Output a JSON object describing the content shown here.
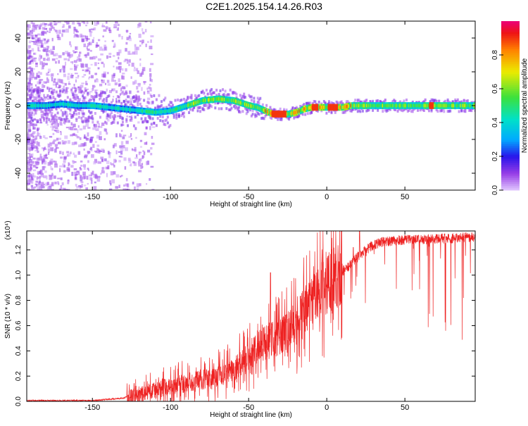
{
  "title": "C2E1.2025.154.14.26.R03",
  "chart_data": [
    {
      "type": "heatmap",
      "xlabel": "Height of straight line (km)",
      "ylabel": "Frequency (Hz)",
      "xlim": [
        -192,
        95
      ],
      "ylim": [
        -50,
        50
      ],
      "x_ticks": [
        "-150",
        "-100",
        "-50",
        "0",
        "50"
      ],
      "x_tick_values": [
        -150,
        -100,
        -50,
        0,
        50
      ],
      "y_ticks": [
        "-40",
        "-20",
        "0",
        "20",
        "40"
      ],
      "y_tick_values": [
        -40,
        -20,
        0,
        20,
        40
      ],
      "colorbar": {
        "label": "Normalized spectral amplitude",
        "range": [
          0,
          1
        ],
        "ticks": [
          "0.0",
          "0.2",
          "0.4",
          "0.6",
          "0.8"
        ],
        "tick_values": [
          0,
          0.2,
          0.4,
          0.6,
          0.8
        ],
        "colormap": "rainbow"
      },
      "ridge": {
        "x": [
          -192,
          -180,
          -170,
          -160,
          -150,
          -140,
          -130,
          -120,
          -110,
          -100,
          -90,
          -80,
          -70,
          -60,
          -50,
          -45,
          -40,
          -35,
          -30,
          -25,
          -20,
          -15,
          -10,
          -5,
          0,
          5,
          10,
          15,
          20,
          30,
          40,
          50,
          60,
          70,
          80,
          90,
          95
        ],
        "y": [
          0,
          0,
          1,
          0,
          0,
          -1,
          -2,
          -3,
          -4,
          -3,
          0,
          3,
          4,
          3,
          0,
          -1,
          -3,
          -5,
          -5,
          -5,
          -4,
          -2,
          -1,
          -1,
          -1,
          -1,
          -1,
          0,
          0,
          0,
          0,
          0,
          0,
          0,
          0,
          0,
          0
        ]
      }
    },
    {
      "type": "line",
      "xlabel": "Height of straight line (km)",
      "ylabel": "SNR (10 * v/v)",
      "y_multiplier_label": "(x10⁴)",
      "xlim": [
        -192,
        95
      ],
      "ylim": [
        0,
        1.35
      ],
      "x_ticks": [
        "-150",
        "-100",
        "-50",
        "0",
        "50"
      ],
      "x_tick_values": [
        -150,
        -100,
        -50,
        0,
        50
      ],
      "y_ticks": [
        "0.0",
        "0.2",
        "0.4",
        "0.6",
        "0.8",
        "1.0",
        "1.2"
      ],
      "y_tick_values": [
        0,
        0.2,
        0.4,
        0.6,
        0.8,
        1.0,
        1.2
      ],
      "series": [
        {
          "color": "#ee2222",
          "x": [
            -192,
            -170,
            -150,
            -140,
            -130,
            -125,
            -120,
            -110,
            -100,
            -90,
            -80,
            -70,
            -60,
            -55,
            -50,
            -45,
            -40,
            -35,
            -30,
            -25,
            -20,
            -15,
            -10,
            -5,
            0,
            5,
            10,
            15,
            20,
            25,
            30,
            35,
            40,
            50,
            60,
            70,
            80,
            90,
            95
          ],
          "y": [
            0.0,
            0.0,
            0.0,
            0.01,
            0.02,
            0.04,
            0.06,
            0.09,
            0.12,
            0.15,
            0.17,
            0.2,
            0.25,
            0.3,
            0.36,
            0.42,
            0.45,
            0.48,
            0.5,
            0.55,
            0.62,
            0.7,
            0.78,
            0.85,
            0.92,
            0.98,
            1.03,
            1.08,
            1.15,
            1.2,
            1.24,
            1.26,
            1.27,
            1.28,
            1.28,
            1.29,
            1.29,
            1.3,
            1.3
          ],
          "peaks": [
            {
              "x": -36,
              "y": 1.02
            },
            {
              "x": 17,
              "y": 1.22
            },
            {
              "x": 21,
              "y": 1.35
            }
          ]
        }
      ]
    }
  ]
}
